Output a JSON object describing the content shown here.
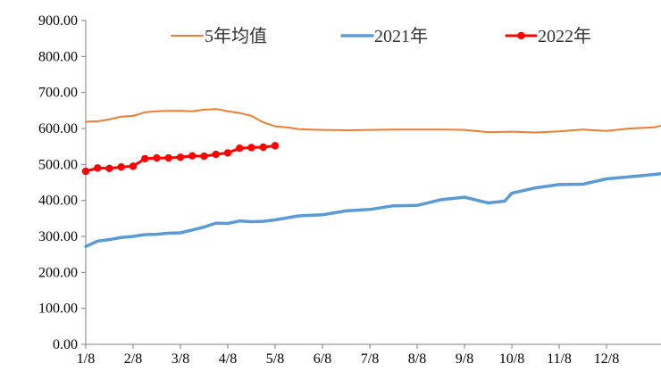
{
  "chart_data": {
    "type": "line",
    "title": "",
    "xlabel": "",
    "ylabel": "",
    "ylim": [
      0,
      900
    ],
    "yticks": [
      "0.00",
      "100.00",
      "200.00",
      "300.00",
      "400.00",
      "500.00",
      "600.00",
      "700.00",
      "800.00",
      "900.00"
    ],
    "yticks_values": [
      0,
      100,
      200,
      300,
      400,
      500,
      600,
      700,
      800,
      900
    ],
    "xlim": [
      0,
      12.4
    ],
    "xticks": [
      "1/8",
      "2/8",
      "3/8",
      "4/8",
      "5/8",
      "6/8",
      "7/8",
      "8/8",
      "9/8",
      "10/8",
      "11/8",
      "12/8"
    ],
    "grid": false,
    "legend_position": "top",
    "series": [
      {
        "name": "5年均值",
        "color": "#ED7D31",
        "markers": false,
        "x": [
          0,
          0.25,
          0.5,
          0.75,
          1.0,
          1.25,
          1.5,
          1.75,
          2.0,
          2.25,
          2.5,
          2.75,
          3.0,
          3.25,
          3.5,
          3.75,
          4.0,
          4.25,
          4.5,
          4.75,
          5.0,
          5.5,
          6.0,
          6.5,
          7.0,
          7.5,
          8.0,
          8.5,
          9.0,
          9.5,
          10.0,
          10.5,
          11.0,
          11.5,
          12.0,
          12.3,
          12.4
        ],
        "values": [
          619,
          620,
          625,
          633,
          635,
          645,
          648,
          649,
          649,
          648,
          652,
          654,
          648,
          643,
          635,
          617,
          606,
          603,
          598,
          597,
          596,
          595,
          596,
          597,
          597,
          597,
          596,
          590,
          591,
          589,
          592,
          597,
          593,
          600,
          603,
          612,
          610
        ]
      },
      {
        "name": "2021年",
        "color": "#5B9BD5",
        "markers": false,
        "x": [
          0,
          0.25,
          0.5,
          0.75,
          1.0,
          1.25,
          1.5,
          1.75,
          2.0,
          2.25,
          2.5,
          2.75,
          3.0,
          3.25,
          3.5,
          3.75,
          4.0,
          4.5,
          5.0,
          5.5,
          6.0,
          6.5,
          7.0,
          7.5,
          8.0,
          8.5,
          8.85,
          9.0,
          9.5,
          10.0,
          10.5,
          11.0,
          11.5,
          12.0,
          12.4
        ],
        "values": [
          272,
          287,
          291,
          297,
          300,
          305,
          306,
          309,
          310,
          318,
          326,
          337,
          336,
          343,
          341,
          342,
          346,
          357,
          360,
          371,
          375,
          385,
          386,
          402,
          409,
          393,
          398,
          420,
          435,
          444,
          445,
          460,
          466,
          472,
          478
        ]
      },
      {
        "name": "2022年",
        "color": "#FF0000",
        "markers": true,
        "x": [
          0,
          0.25,
          0.5,
          0.75,
          1.0,
          1.25,
          1.5,
          1.75,
          2.0,
          2.25,
          2.5,
          2.75,
          3.0,
          3.25,
          3.5,
          3.75,
          4.0
        ],
        "values": [
          481,
          490,
          489,
          493,
          495,
          516,
          518,
          518,
          520,
          524,
          523,
          528,
          532,
          545,
          547,
          548,
          552
        ]
      }
    ]
  }
}
